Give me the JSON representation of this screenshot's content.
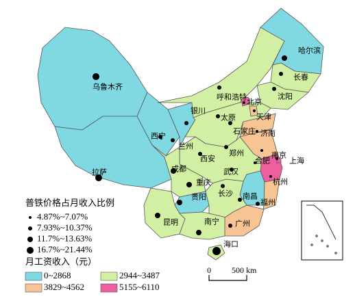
{
  "map": {
    "cities": [
      "哈尔滨",
      "长春",
      "沈阳",
      "乌鲁木齐",
      "呼和浩特",
      "北京",
      "天津",
      "银川",
      "太原",
      "石家庄",
      "济南",
      "西宁",
      "兰州",
      "郑州",
      "南京",
      "上海",
      "合肥",
      "西安",
      "成都",
      "武汉",
      "重庆",
      "长沙",
      "杭州",
      "拉萨",
      "贵阳",
      "南昌",
      "福州",
      "昆明",
      "南宁",
      "广州",
      "海口"
    ],
    "size_legend": {
      "title": "普铁价格占月收入比例",
      "items": [
        "4.87%~7.07%",
        "7.93%~10.37%",
        "11.7%~13.63%",
        "16.7%~21.44%"
      ]
    },
    "color_legend": {
      "title": "月工资收入（元）",
      "items": [
        {
          "label": "0~2868",
          "color": "#7fd8e2"
        },
        {
          "label": "2944~3487",
          "color": "#d2f0a4"
        },
        {
          "label": "3829~4562",
          "color": "#f7c493"
        },
        {
          "label": "5155~6110",
          "color": "#ee5fa0"
        }
      ]
    },
    "scale": {
      "start": "0",
      "end": "500 km"
    }
  }
}
